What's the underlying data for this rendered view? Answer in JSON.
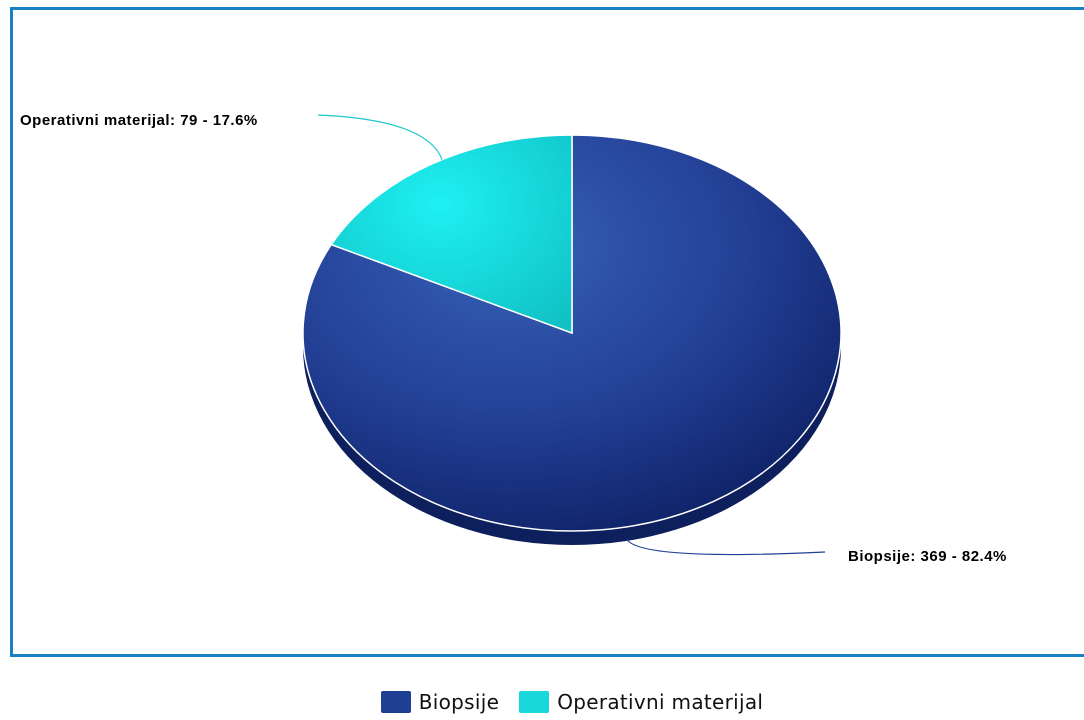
{
  "chart_data": {
    "type": "pie",
    "title": "",
    "slices": [
      {
        "label": "Biopsije",
        "value": 369,
        "percent": "82.4%",
        "data_label": "Biopsije: 369 - 82.4%",
        "color": "#1f3f95"
      },
      {
        "label": "Operativni materijal",
        "value": 79,
        "percent": "17.6%",
        "data_label": "Operativni materijal: 79 - 17.6%",
        "color": "#19d8dc"
      }
    ],
    "legend_placement": "bottom",
    "style": "3d"
  },
  "legend": {
    "items": [
      {
        "label": "Biopsije",
        "color": "#1f3f95"
      },
      {
        "label": "Operativni materijal",
        "color": "#19d8dc"
      }
    ]
  },
  "colors": {
    "frame_border": "#1b7fc6"
  }
}
